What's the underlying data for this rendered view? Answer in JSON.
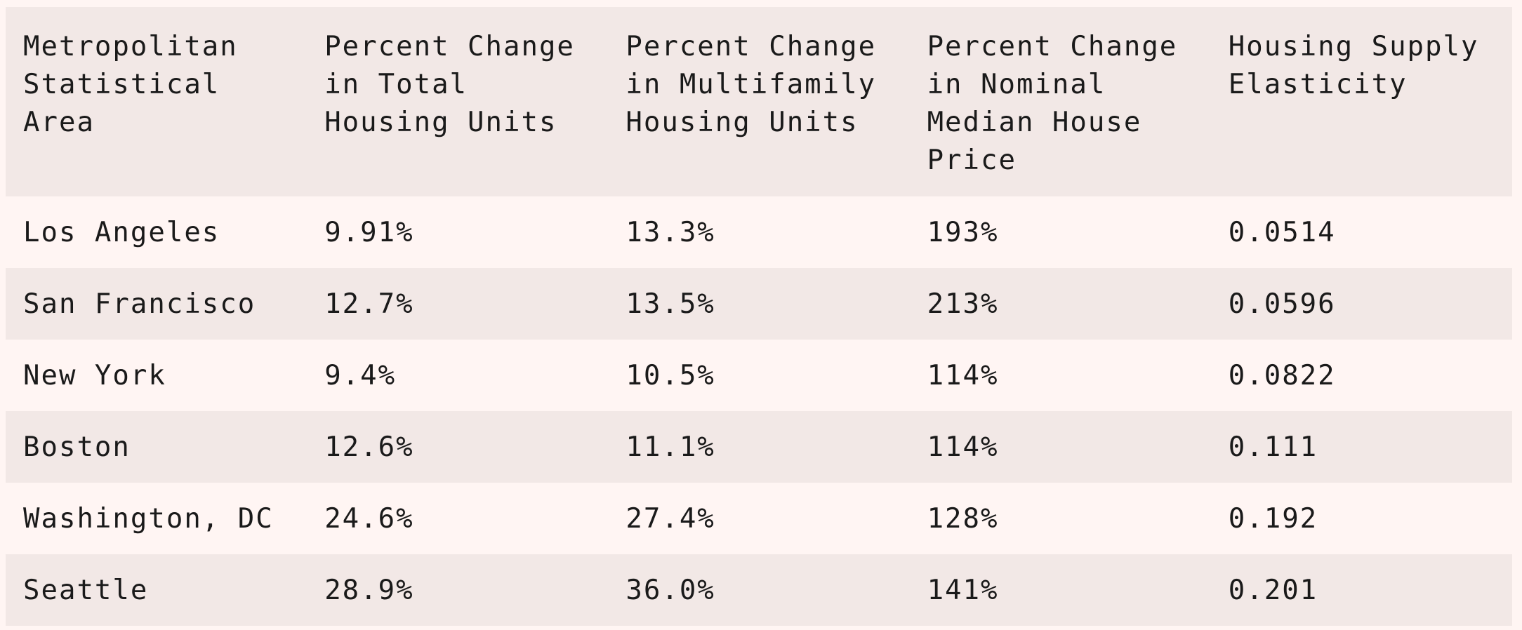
{
  "table": {
    "headers": [
      [
        "Metropolitan",
        "Statistical",
        "Area"
      ],
      [
        "Percent Change",
        "in Total",
        "Housing Units"
      ],
      [
        "Percent Change",
        "in Multifamily",
        "Housing Units"
      ],
      [
        "Percent Change",
        "in Nominal",
        "Median House",
        "Price"
      ],
      [
        "Housing Supply",
        "Elasticity"
      ]
    ],
    "rows": [
      [
        "Los Angeles",
        "9.91%",
        "13.3%",
        "193%",
        "0.0514"
      ],
      [
        "San Francisco",
        "12.7%",
        "13.5%",
        "213%",
        "0.0596"
      ],
      [
        "New York",
        "9.4%",
        "10.5%",
        "114%",
        "0.0822"
      ],
      [
        "Boston",
        "12.6%",
        "11.1%",
        "114%",
        "0.111"
      ],
      [
        "Washington, DC",
        "24.6%",
        "27.4%",
        "128%",
        "0.192"
      ],
      [
        "Seattle",
        "28.9%",
        "36.0%",
        "141%",
        "0.201"
      ]
    ]
  },
  "colors": {
    "header_bg": "#f2e8e6",
    "row_light": "#fff5f3",
    "row_dark": "#f2e8e6",
    "text": "#1a1a1a"
  }
}
